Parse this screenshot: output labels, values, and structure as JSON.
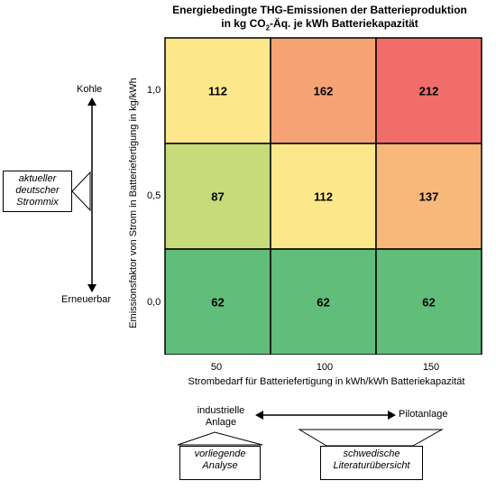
{
  "chart_data": {
    "type": "heatmap",
    "title_line1": "Energiebedingte  THG-Emissionen  der Batterieproduktion",
    "title_line2_prefix": "in kg CO",
    "title_line2_sub": "2",
    "title_line2_suffix": "-Äq.  je kWh Batteriekapazität",
    "xlabel": "Strombedarf für Batteriefertigung in kWh/kWh  Batteriekapazität",
    "ylabel": "Emissionsfaktor von Strom in Batteriefertigung in kg/kWh",
    "x_categories": [
      "50",
      "100",
      "150"
    ],
    "y_categories": [
      "1,0",
      "0,5",
      "0,0"
    ],
    "values": [
      [
        112,
        162,
        212
      ],
      [
        87,
        112,
        137
      ],
      [
        62,
        62,
        62
      ]
    ],
    "cell_colors": [
      [
        "#fce88a",
        "#f6a373",
        "#f06d6a"
      ],
      [
        "#c8db7a",
        "#fce88a",
        "#f8b87a"
      ],
      [
        "#60bd7a",
        "#60bd7a",
        "#60bd7a"
      ]
    ]
  },
  "side_labels": {
    "top": "Kohle",
    "bottom": "Erneuerbar",
    "current_mix": "aktueller deutscher Strommix"
  },
  "bottom_labels": {
    "left": "industrielle Anlage",
    "right": "Pilotanlage",
    "box_left": "vorliegende Analyse",
    "box_right": "schwedische Literaturübersicht"
  }
}
